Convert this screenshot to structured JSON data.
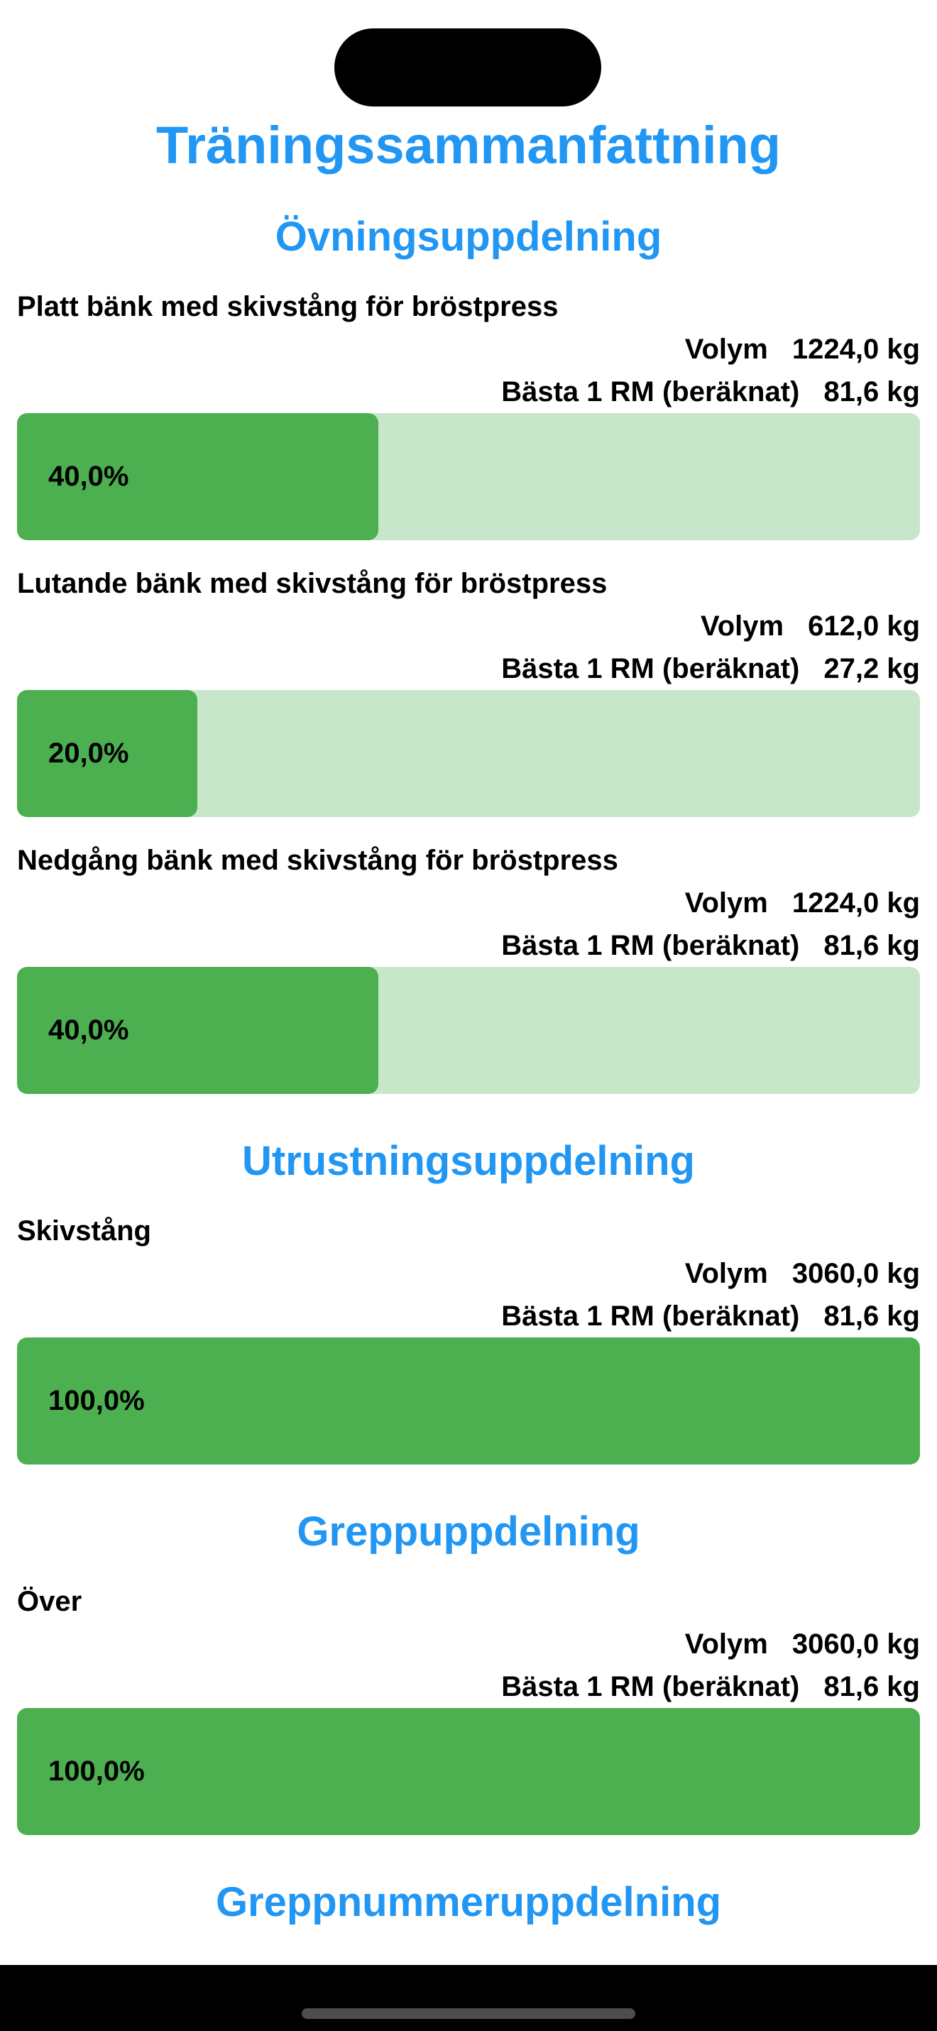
{
  "title": "Träningssammanfattning",
  "colors": {
    "accent": "#2196F3",
    "bar_fill": "#4CAF50",
    "bar_track": "#C8E6C9"
  },
  "volume_label": "Volym",
  "one_rm_label": "Bästa 1 RM (beräknat)",
  "sections": [
    {
      "heading": "Övningsuppdelning",
      "items": [
        {
          "name": "Platt bänk med skivstång för bröstpress",
          "volume": "1224,0 kg",
          "one_rm": "81,6 kg",
          "percent_label": "40,0%",
          "percent": 40
        },
        {
          "name": "Lutande bänk med skivstång för bröstpress",
          "volume": "612,0 kg",
          "one_rm": "27,2 kg",
          "percent_label": "20,0%",
          "percent": 20
        },
        {
          "name": "Nedgång bänk med skivstång för bröstpress",
          "volume": "1224,0 kg",
          "one_rm": "81,6 kg",
          "percent_label": "40,0%",
          "percent": 40
        }
      ]
    },
    {
      "heading": "Utrustningsuppdelning",
      "items": [
        {
          "name": "Skivstång",
          "volume": "3060,0 kg",
          "one_rm": "81,6 kg",
          "percent_label": "100,0%",
          "percent": 100
        }
      ]
    },
    {
      "heading": "Greppuppdelning",
      "items": [
        {
          "name": "Över",
          "volume": "3060,0 kg",
          "one_rm": "81,6 kg",
          "percent_label": "100,0%",
          "percent": 100
        }
      ]
    },
    {
      "heading": "Greppnummeruppdelning",
      "items": []
    }
  ]
}
